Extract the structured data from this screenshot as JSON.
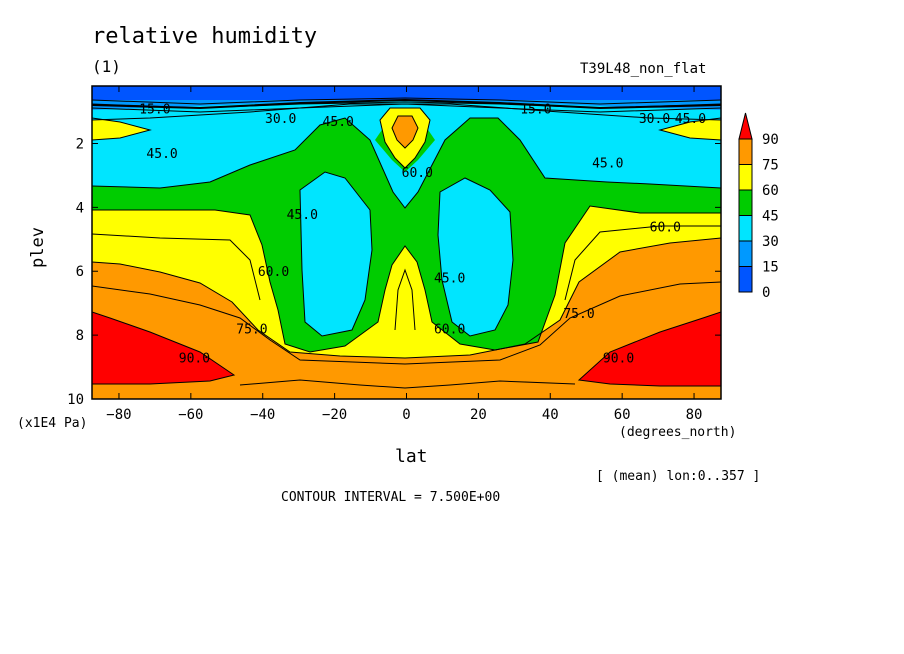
{
  "chart_data": {
    "type": "heatmap",
    "title": "relative humidity",
    "subtitle": "(1)",
    "run_name": "T39L48_non_flat",
    "xlabel": "lat",
    "x_unit": "(degrees_north)",
    "ylabel": "plev",
    "y_unit": "(x1E4 Pa)",
    "mean_label": "[ (mean) lon:0..357 ]",
    "contour_interval_text": "CONTOUR INTERVAL = 7.500E+00",
    "x_range": [
      -87.5,
      87.5
    ],
    "y_range": [
      0.2,
      10
    ],
    "y_inverted": true,
    "x_ticks": [
      -80,
      -60,
      -40,
      -20,
      0,
      20,
      40,
      60,
      80
    ],
    "y_ticks": [
      2,
      4,
      6,
      8,
      10
    ],
    "colorbar": {
      "levels": [
        0,
        15,
        30,
        45,
        60,
        75,
        90
      ],
      "colors": [
        "#0055ff",
        "#0099ff",
        "#00e5ff",
        "#00cc00",
        "#ffff00",
        "#ff9900",
        "#ff0000"
      ]
    },
    "contour_labels": [
      {
        "text": "15.0",
        "lat": -70,
        "plev": 0.9
      },
      {
        "text": "30.0",
        "lat": -35,
        "plev": 1.2
      },
      {
        "text": "45.0",
        "lat": -19,
        "plev": 1.3
      },
      {
        "text": "45.0",
        "lat": -68,
        "plev": 2.3
      },
      {
        "text": "45.0",
        "lat": -29,
        "plev": 4.2
      },
      {
        "text": "60.0",
        "lat": 3,
        "plev": 2.9
      },
      {
        "text": "60.0",
        "lat": -37,
        "plev": 6.0
      },
      {
        "text": "75.0",
        "lat": -43,
        "plev": 7.8
      },
      {
        "text": "90.0",
        "lat": -59,
        "plev": 8.7
      },
      {
        "text": "15.0",
        "lat": 36,
        "plev": 0.9
      },
      {
        "text": "30.0",
        "lat": 69,
        "plev": 1.2
      },
      {
        "text": "45.0",
        "lat": 79,
        "plev": 1.2
      },
      {
        "text": "45.0",
        "lat": 56,
        "plev": 2.6
      },
      {
        "text": "60.0",
        "lat": 72,
        "plev": 4.6
      },
      {
        "text": "45.0",
        "lat": 12,
        "plev": 6.2
      },
      {
        "text": "60.0",
        "lat": 12,
        "plev": 7.8
      },
      {
        "text": "75.0",
        "lat": 48,
        "plev": 7.3
      },
      {
        "text": "90.0",
        "lat": 59,
        "plev": 8.7
      }
    ]
  }
}
